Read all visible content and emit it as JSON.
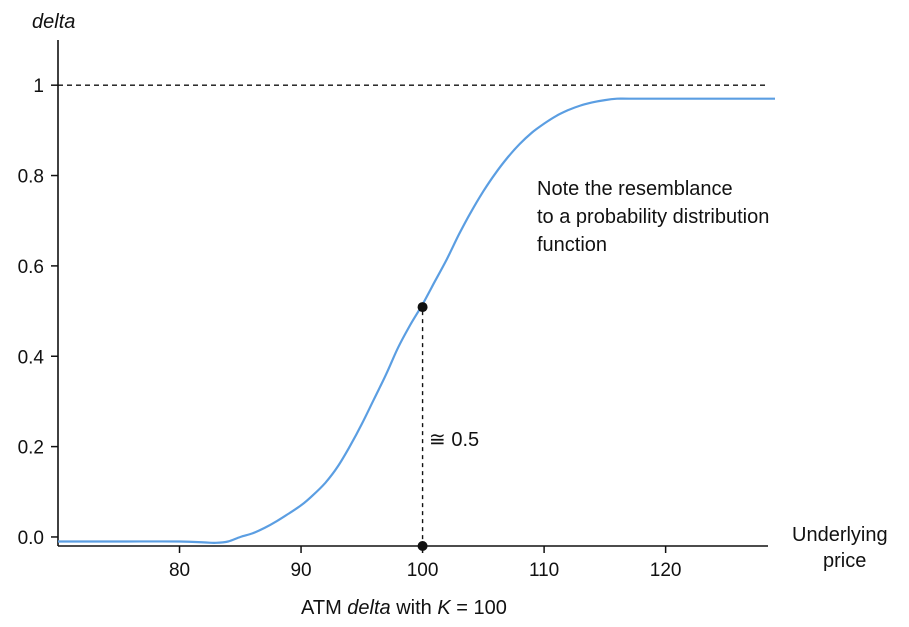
{
  "chart_data": {
    "type": "line",
    "title": "",
    "caption": {
      "prefix": "ATM ",
      "italic_word": "delta",
      "middle": " with ",
      "italic_var": "K",
      "suffix": " = 100"
    },
    "ylabel": "delta",
    "xlabel_lines": [
      "Underlying",
      "price"
    ],
    "xlim": [
      70,
      129
    ],
    "ylim": [
      -0.02,
      1.1
    ],
    "x_ticks": [
      80,
      90,
      100,
      110,
      120
    ],
    "y_ticks": [
      0.0,
      0.2,
      0.4,
      0.6,
      0.8,
      1
    ],
    "y_tick_labels": [
      "0.0",
      "0.2",
      "0.4",
      "0.6",
      "0.8",
      "1"
    ],
    "series": [
      {
        "name": "delta",
        "color": "#5b9ee2",
        "x": [
          70,
          75,
          80,
          82,
          83,
          84,
          85,
          86,
          87,
          88,
          89,
          90,
          91,
          92,
          93,
          94,
          95,
          96,
          97,
          98,
          99,
          100,
          101,
          102,
          103,
          104,
          105,
          106,
          107,
          108,
          109,
          110,
          111,
          112,
          113,
          114,
          115,
          116,
          117,
          120,
          125,
          129
        ],
        "values": [
          -0.01,
          -0.01,
          -0.01,
          -0.012,
          -0.013,
          -0.01,
          0.0,
          0.008,
          0.02,
          0.035,
          0.052,
          0.07,
          0.093,
          0.12,
          0.155,
          0.2,
          0.25,
          0.305,
          0.36,
          0.42,
          0.47,
          0.515,
          0.565,
          0.615,
          0.67,
          0.72,
          0.765,
          0.805,
          0.84,
          0.87,
          0.895,
          0.915,
          0.932,
          0.945,
          0.955,
          0.962,
          0.967,
          0.97,
          0.97,
          0.97,
          0.97,
          0.97
        ]
      }
    ],
    "reference_line": {
      "y": 1,
      "style": "dashed"
    },
    "highlight_point": {
      "x": 100,
      "y": 0.5,
      "label": "≅ 0.5"
    },
    "annotation": [
      "Note the resemblance",
      "to a probability distribution",
      "function"
    ],
    "colors": {
      "curve": "#5b9ee2",
      "axis": "#111111"
    }
  }
}
